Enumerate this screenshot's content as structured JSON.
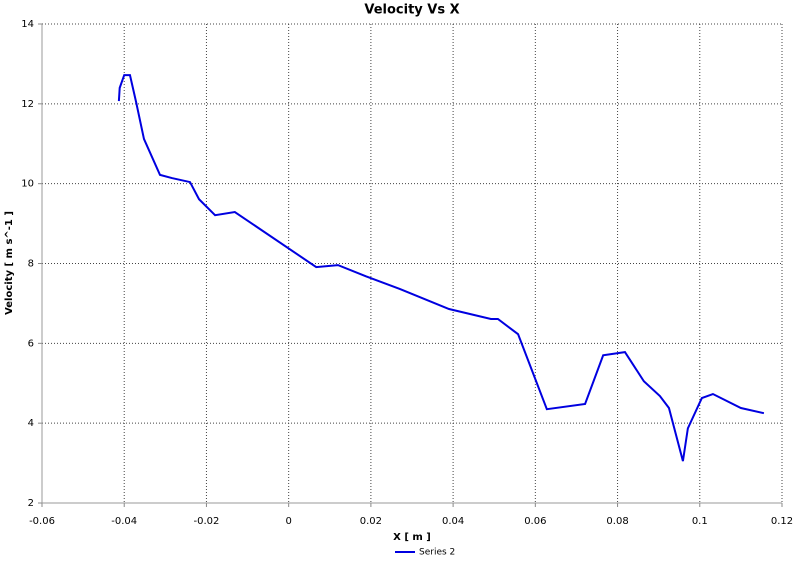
{
  "chart_data": {
    "type": "line",
    "title": "Velocity Vs X",
    "x_label": "X [ m ]",
    "y_label": "Velocity [ m s^-1 ]",
    "x": [
      -0.0413,
      -0.0411,
      -0.04,
      -0.0386,
      -0.0371,
      -0.0352,
      -0.0313,
      -0.0284,
      -0.024,
      -0.0218,
      -0.0179,
      -0.0131,
      0.0067,
      0.012,
      0.0188,
      0.0271,
      0.039,
      0.0492,
      0.0509,
      0.0558,
      0.0628,
      0.0721,
      0.0765,
      0.0818,
      0.0864,
      0.0903,
      0.0925,
      0.0959,
      0.0971,
      0.1005,
      0.1032,
      0.11,
      0.1156
    ],
    "series": [
      {
        "name": "Series 2",
        "color": "#0000e0",
        "values": [
          12.07,
          12.4,
          12.72,
          12.72,
          12.04,
          11.12,
          10.22,
          10.14,
          10.04,
          9.61,
          9.21,
          9.29,
          7.91,
          7.96,
          7.68,
          7.36,
          6.86,
          6.61,
          6.61,
          6.23,
          4.35,
          4.48,
          5.7,
          5.78,
          5.05,
          4.68,
          4.38,
          3.05,
          3.87,
          4.63,
          4.73,
          4.38,
          4.25
        ]
      }
    ],
    "xlim": [
      -0.06,
      0.12
    ],
    "xticks": [
      -0.06,
      -0.04,
      -0.02,
      0,
      0.02,
      0.04,
      0.06,
      0.08,
      0.1,
      0.12
    ],
    "ylim": [
      2,
      14
    ],
    "yticks": [
      2,
      4,
      6,
      8,
      10,
      12,
      14
    ],
    "grid": true,
    "legend": "bottom"
  }
}
